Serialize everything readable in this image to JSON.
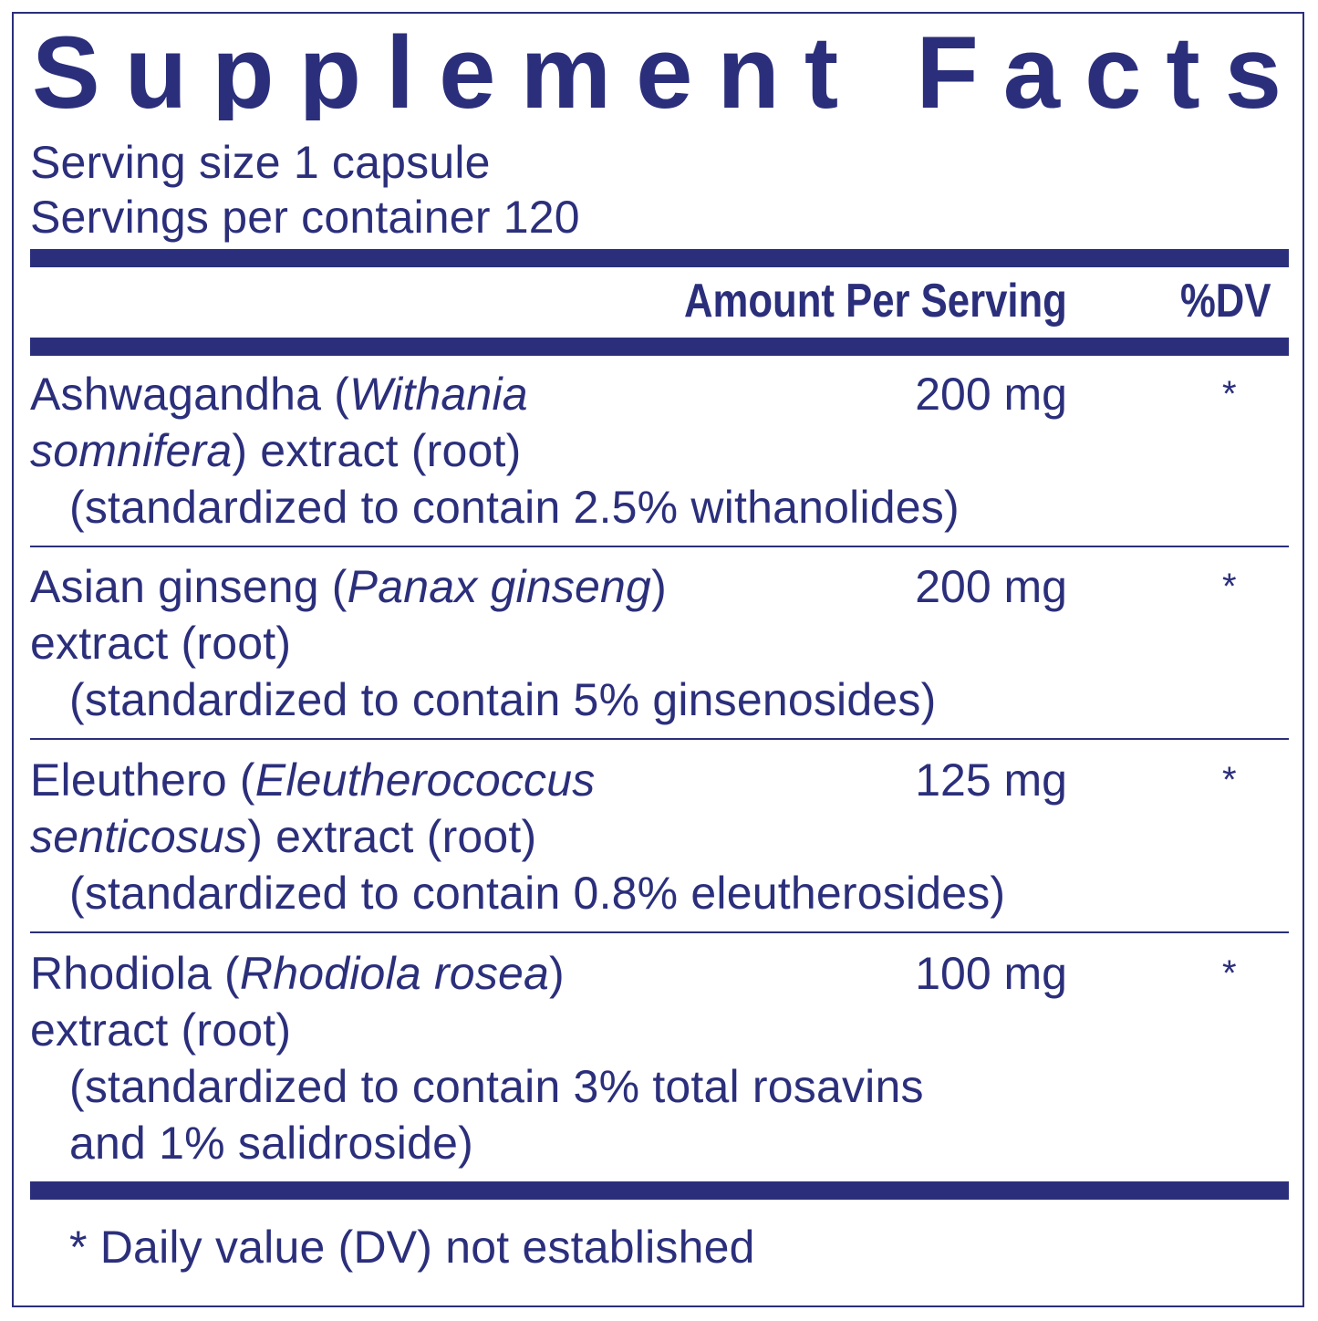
{
  "title": "Supplement Facts",
  "serving_size": "Serving size  1 capsule",
  "servings_per_container": "Servings per container  120",
  "header": {
    "amount": "Amount Per Serving",
    "dv": "%DV"
  },
  "ingredients": [
    {
      "lines": [
        [
          {
            "text": "Ashwagandha (",
            "italic": false
          },
          {
            "text": "Withania",
            "italic": true
          }
        ],
        [
          {
            "text": "somnifera",
            "italic": true
          },
          {
            "text": ") extract (root)",
            "italic": false
          }
        ],
        [
          {
            "text": "(standardized to contain 2.5% withanolides)",
            "italic": false
          }
        ]
      ],
      "amount": "200 mg",
      "dv": "*"
    },
    {
      "lines": [
        [
          {
            "text": "Asian ginseng (",
            "italic": false
          },
          {
            "text": "Panax ginseng",
            "italic": true
          },
          {
            "text": ")",
            "italic": false
          }
        ],
        [
          {
            "text": "extract (root)",
            "italic": false
          }
        ],
        [
          {
            "text": "(standardized to contain 5% ginsenosides)",
            "italic": false
          }
        ]
      ],
      "amount": "200 mg",
      "dv": "*"
    },
    {
      "lines": [
        [
          {
            "text": "Eleuthero (",
            "italic": false
          },
          {
            "text": "Eleutherococcus",
            "italic": true
          }
        ],
        [
          {
            "text": "senticosus",
            "italic": true
          },
          {
            "text": ") extract (root)",
            "italic": false
          }
        ],
        [
          {
            "text": "(standardized to contain 0.8% eleutherosides)",
            "italic": false
          }
        ]
      ],
      "amount": "125 mg",
      "dv": "*"
    },
    {
      "lines": [
        [
          {
            "text": "Rhodiola (",
            "italic": false
          },
          {
            "text": "Rhodiola rosea",
            "italic": true
          },
          {
            "text": ")",
            "italic": false
          }
        ],
        [
          {
            "text": "extract (root)",
            "italic": false
          }
        ],
        [
          {
            "text": "(standardized to contain 3% total rosavins",
            "italic": false
          }
        ],
        [
          {
            "text": "and 1% salidroside)",
            "italic": false
          }
        ]
      ],
      "amount": "100 mg",
      "dv": "*"
    }
  ],
  "footnote": "* Daily value (DV) not established",
  "colors": {
    "ink": "#2b2f7b"
  }
}
